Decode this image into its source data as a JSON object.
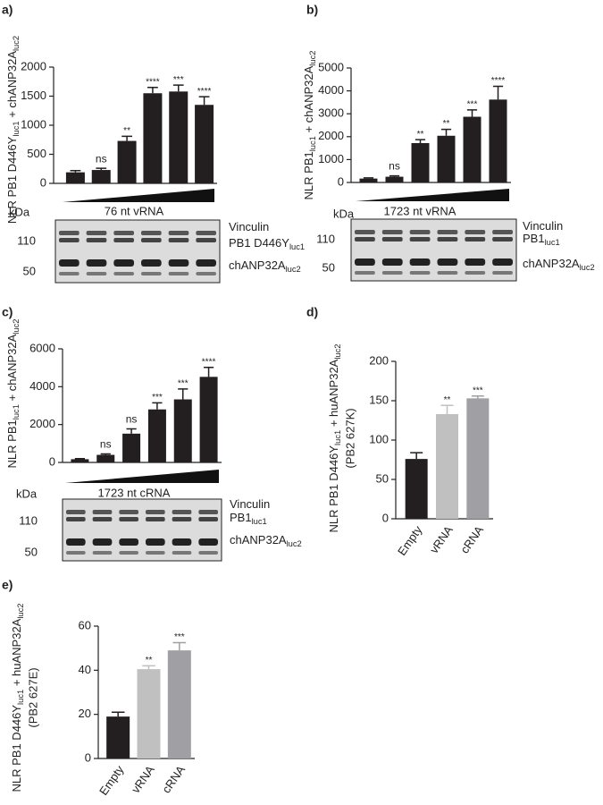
{
  "chart_data": [
    {
      "type": "bar",
      "panel": "a)",
      "ylabel": [
        "NLR PB1 D446Y",
        "luc1",
        " + chANP32A",
        "luc2"
      ],
      "values": [
        190,
        230,
        730,
        1550,
        1580,
        1350
      ],
      "errors": [
        30,
        30,
        80,
        100,
        110,
        140
      ],
      "annotations": [
        null,
        "ns",
        "**",
        "****",
        "***",
        "****"
      ],
      "color": "#231f20",
      "ylim": [
        0,
        2000
      ],
      "yticks": [
        0,
        500,
        1000,
        1500,
        2000
      ],
      "blot": {
        "unit": "kDa",
        "title": "76 nt vRNA",
        "markers": [
          "110",
          "50"
        ],
        "labels": [
          [
            "Vinculin"
          ],
          [
            "PB1 D446Y",
            "luc1"
          ],
          [
            "chANP32A",
            "luc2"
          ]
        ]
      }
    },
    {
      "type": "bar",
      "panel": "b)",
      "ylabel": [
        "NLR PB1",
        "luc1",
        " + chANP32A",
        "luc2"
      ],
      "values": [
        170,
        250,
        1720,
        2040,
        2870,
        3620
      ],
      "errors": [
        30,
        40,
        150,
        280,
        300,
        580
      ],
      "annotations": [
        null,
        "ns",
        "**",
        "**",
        "***",
        "****"
      ],
      "color": "#231f20",
      "ylim": [
        0,
        5000
      ],
      "yticks": [
        0,
        1000,
        2000,
        3000,
        4000,
        5000
      ],
      "blot": {
        "unit": "kDa",
        "title": "1723 nt vRNA",
        "markers": [
          "110",
          "50"
        ],
        "labels": [
          [
            "Vinculin"
          ],
          [
            "PB1",
            "luc1"
          ],
          [
            "chANP32A",
            "luc2"
          ]
        ]
      }
    },
    {
      "type": "bar",
      "panel": "c)",
      "ylabel": [
        "NLR PB1",
        "luc1",
        " + chANP32A",
        "luc2"
      ],
      "values": [
        170,
        400,
        1520,
        2800,
        3330,
        4520
      ],
      "errors": [
        30,
        50,
        250,
        350,
        550,
        500
      ],
      "annotations": [
        null,
        "ns",
        "ns",
        "***",
        "***",
        "****"
      ],
      "color": "#231f20",
      "ylim": [
        0,
        6000
      ],
      "yticks": [
        0,
        2000,
        4000,
        6000
      ],
      "blot": {
        "unit": "kDa",
        "title": "1723 nt cRNA",
        "markers": [
          "110",
          "50"
        ],
        "labels": [
          [
            "Vinculin"
          ],
          [
            "PB1",
            "luc1"
          ],
          [
            "chANP32A",
            "luc2"
          ]
        ]
      }
    },
    {
      "type": "bar",
      "panel": "d)",
      "ylabel": [
        "NLR PB1 D446Y",
        "luc1",
        " + huANP32A",
        "luc2"
      ],
      "ylabel2": "(PB2 627K)",
      "categories": [
        "Empty",
        "vRNA",
        "cRNA"
      ],
      "values": [
        76,
        133,
        153
      ],
      "errors": [
        8,
        11,
        3
      ],
      "annotations": [
        null,
        "**",
        "***"
      ],
      "colors": [
        "#231f20",
        "#c0c0c0",
        "#a0a0a4"
      ],
      "ylim": [
        0,
        200
      ],
      "yticks": [
        0,
        50,
        100,
        150,
        200
      ]
    },
    {
      "type": "bar",
      "panel": "e)",
      "ylabel": [
        "NLR PB1 D446Y",
        "luc1",
        " + huANP32A",
        "luc2"
      ],
      "ylabel2": "(PB2 627E)",
      "categories": [
        "Empty",
        "vRNA",
        "cRNA"
      ],
      "values": [
        19,
        40.5,
        49
      ],
      "errors": [
        2,
        1.5,
        3.5
      ],
      "annotations": [
        null,
        "**",
        "***"
      ],
      "colors": [
        "#231f20",
        "#c0c0c0",
        "#a0a0a4"
      ],
      "ylim": [
        0,
        60
      ],
      "yticks": [
        0,
        20,
        40,
        60
      ]
    }
  ]
}
